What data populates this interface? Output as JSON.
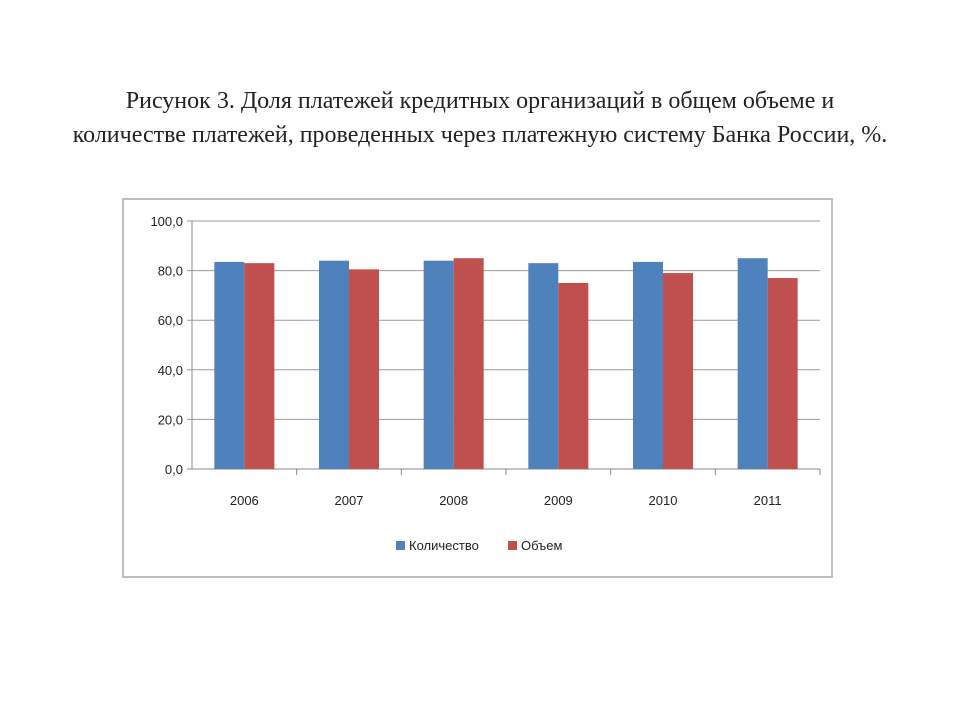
{
  "caption": {
    "line1": "Рисунок 3. Доля платежей кредитных организаций в общем объеме и",
    "line2": "количестве платежей, проведенных через платежную систему Банка России, %."
  },
  "chart_data": {
    "type": "bar",
    "categories": [
      "2006",
      "2007",
      "2008",
      "2009",
      "2010",
      "2011"
    ],
    "series": [
      {
        "name": "Количество",
        "color": "#4f81bd",
        "values": [
          83.5,
          84.0,
          84.0,
          83.0,
          83.5,
          85.0
        ]
      },
      {
        "name": "Объем",
        "color": "#c0504d",
        "values": [
          83.0,
          80.5,
          85.0,
          75.0,
          79.0,
          77.0
        ]
      }
    ],
    "yticks": [
      "0,0",
      "20,0",
      "40,0",
      "60,0",
      "80,0",
      "100,0"
    ],
    "ylim": [
      0,
      100
    ],
    "grid": true,
    "legend_position": "bottom",
    "title": "",
    "xlabel": "",
    "ylabel": ""
  }
}
